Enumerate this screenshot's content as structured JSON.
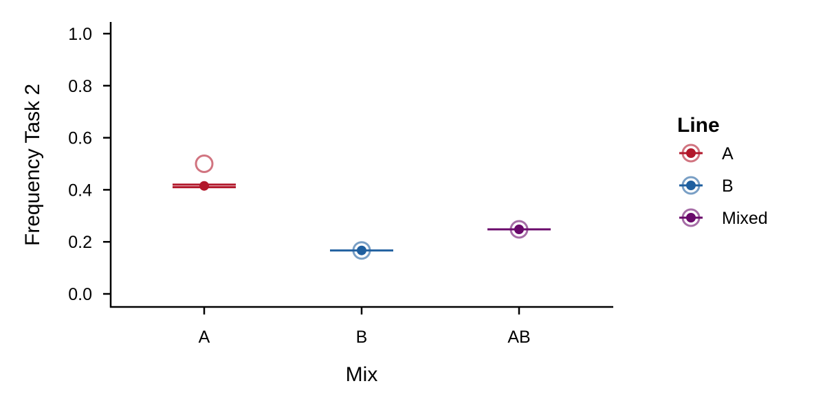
{
  "chart_data": {
    "type": "scatter",
    "xlabel": "Mix",
    "ylabel": "Frequency Task 2",
    "categories": [
      "A",
      "B",
      "AB"
    ],
    "ylim": [
      0,
      1
    ],
    "yticks": [
      "0.0",
      "0.2",
      "0.4",
      "0.6",
      "0.8",
      "1.0"
    ],
    "grid": false,
    "legend": {
      "title": "Line",
      "placement": "right",
      "entries": [
        "A",
        "B",
        "Mixed"
      ]
    },
    "series": [
      {
        "name": "A",
        "color": "#b2182b",
        "points": [
          {
            "category": "A",
            "mean": 0.415,
            "observed": 0.5,
            "line_lower": 0.41,
            "line_upper": 0.42
          }
        ]
      },
      {
        "name": "B",
        "color": "#1f5f9f",
        "points": [
          {
            "category": "B",
            "mean": 0.167,
            "observed": 0.167,
            "line_lower": 0.167,
            "line_upper": 0.167
          }
        ]
      },
      {
        "name": "Mixed",
        "color": "#6a0a6b",
        "points": [
          {
            "category": "AB",
            "mean": 0.248,
            "observed": 0.248,
            "line_lower": 0.248,
            "line_upper": 0.248
          }
        ]
      }
    ]
  }
}
